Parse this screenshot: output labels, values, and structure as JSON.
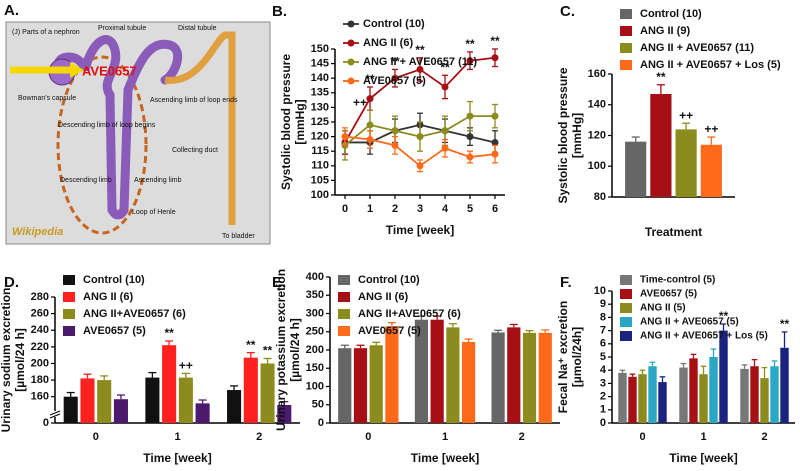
{
  "panel_a": {
    "labels": [
      "A.",
      "(J) Parts of a nephron",
      "Proximal tubule",
      "Distal tubule",
      "AVE0657",
      "Bowman's capsule",
      "Descending limb of loop begins",
      "Ascending limb of loop ends",
      "Collecting duct",
      "Descending limb",
      "Ascending limb",
      "Loop of Henle",
      "To bladder",
      "Wikipedia"
    ]
  },
  "chart_data": [
    {
      "type": "line",
      "panel_label": "B.",
      "xlabel": "Time [week]",
      "ylabel": [
        "Systolic blood pressure",
        "[mmHg]"
      ],
      "x": [
        0,
        1,
        2,
        3,
        4,
        5,
        6
      ],
      "xlim": [
        -0.4,
        6.4
      ],
      "xticks": [
        0,
        1,
        2,
        3,
        4,
        5,
        6
      ],
      "ylim": [
        100,
        150
      ],
      "yticks": [
        100,
        105,
        110,
        115,
        120,
        125,
        130,
        135,
        140,
        145,
        150
      ],
      "legend": "upper left",
      "series": [
        {
          "name": "Control (10)",
          "color": "#333333",
          "values": [
            118,
            118,
            122,
            124,
            122,
            120,
            118
          ],
          "errors": [
            4,
            4,
            4,
            4,
            4,
            3,
            4
          ]
        },
        {
          "name": "ANG II (6)",
          "color": "#a50f15",
          "values": [
            118,
            133,
            140,
            143,
            137,
            146,
            147
          ],
          "errors": [
            4,
            4,
            3,
            4,
            4,
            3,
            3
          ]
        },
        {
          "name": "ANG II + AVE0657 (11)",
          "color": "#8c8c1e",
          "values": [
            117,
            124,
            122,
            120,
            122,
            127,
            127
          ],
          "errors": [
            5,
            5,
            5,
            5,
            5,
            5,
            4
          ]
        },
        {
          "name": "AVE0657 (5)",
          "color": "#ff6a1a",
          "values": [
            120,
            119,
            117,
            110,
            116,
            113,
            114
          ],
          "errors": [
            3,
            3,
            3,
            2,
            3,
            2,
            3
          ]
        }
      ],
      "annotations": [
        {
          "text": "**",
          "series": 1,
          "index": 1
        },
        {
          "text": "**",
          "series": 1,
          "index": 2
        },
        {
          "text": "**",
          "series": 1,
          "index": 3
        },
        {
          "text": "**",
          "series": 1,
          "index": 4
        },
        {
          "text": "**",
          "series": 1,
          "index": 5
        },
        {
          "text": "**",
          "series": 1,
          "index": 6
        },
        {
          "text": "++",
          "series": 2,
          "index": 1
        }
      ]
    },
    {
      "type": "bar",
      "panel_label": "C.",
      "xlabel": "Treatment",
      "ylabel": [
        "Systolic blood pressure",
        "[mmHg]"
      ],
      "categories": [
        null
      ],
      "ylim": [
        80,
        160
      ],
      "yticks": [
        80,
        100,
        120,
        140,
        160
      ],
      "legend": "upper left",
      "series": [
        {
          "name": "Control (10)",
          "color": "#666666",
          "values": [
            116
          ],
          "errors": [
            3
          ]
        },
        {
          "name": "ANG II (9)",
          "color": "#a50f15",
          "values": [
            147
          ],
          "errors": [
            6
          ]
        },
        {
          "name": "ANG II + AVE0657 (11)",
          "color": "#8c8c1e",
          "values": [
            124
          ],
          "errors": [
            4
          ]
        },
        {
          "name": "ANG II + AVE0657 + Los (5)",
          "color": "#ff6a1a",
          "values": [
            114
          ],
          "errors": [
            5
          ]
        }
      ],
      "annotations": [
        {
          "text": "**",
          "series": 1,
          "index": 0
        },
        {
          "text": "++",
          "series": 2,
          "index": 0
        },
        {
          "text": "++",
          "series": 3,
          "index": 0
        }
      ]
    },
    {
      "type": "bar",
      "panel_label": "D.",
      "xlabel": "Time [week]",
      "ylabel": [
        "Urinary sodium excretion",
        "[µmol/24 h]"
      ],
      "categories": [
        "0",
        "1",
        "2"
      ],
      "ylim": [
        0,
        280
      ],
      "ybreak": [
        0,
        150
      ],
      "yticks": [
        0,
        160,
        180,
        200,
        220,
        240,
        260,
        280
      ],
      "legend": "upper left",
      "series": [
        {
          "name": "Control (10)",
          "color": "#111111",
          "values": [
            160,
            183,
            168
          ],
          "errors": [
            5,
            6,
            5
          ]
        },
        {
          "name": "ANG II (6)",
          "color": "#ff2020",
          "values": [
            182,
            222,
            207
          ],
          "errors": [
            5,
            5,
            6
          ]
        },
        {
          "name": "ANG II+AVE0657 (6)",
          "color": "#8c8c1e",
          "values": [
            180,
            183,
            200
          ],
          "errors": [
            5,
            5,
            6
          ]
        },
        {
          "name": "AVE0657 (5)",
          "color": "#4b1a6e",
          "values": [
            157,
            152,
            150
          ],
          "errors": [
            5,
            4,
            4
          ]
        }
      ],
      "annotations": [
        {
          "text": "**",
          "series": 1,
          "index": 1
        },
        {
          "text": "++",
          "series": 2,
          "index": 1
        },
        {
          "text": "**",
          "series": 1,
          "index": 2
        },
        {
          "text": "**",
          "series": 2,
          "index": 2
        }
      ]
    },
    {
      "type": "bar",
      "panel_label": "E.",
      "xlabel": "Time [week]",
      "ylabel": [
        "Urinary potassium excretion",
        "[µmol/24 h]"
      ],
      "categories": [
        "0",
        "1",
        "2"
      ],
      "ylim": [
        0,
        400
      ],
      "yticks": [
        0,
        50,
        100,
        150,
        200,
        250,
        300,
        350,
        400
      ],
      "legend": "upper left",
      "series": [
        {
          "name": "Control (10)",
          "color": "#666666",
          "values": [
            205,
            283,
            248
          ],
          "errors": [
            8,
            10,
            6
          ]
        },
        {
          "name": "ANG II (6)",
          "color": "#a50f15",
          "values": [
            205,
            283,
            262
          ],
          "errors": [
            8,
            10,
            8
          ]
        },
        {
          "name": "ANG II+AVE0657 (6)",
          "color": "#8c8c1e",
          "values": [
            213,
            262,
            247
          ],
          "errors": [
            8,
            10,
            6
          ]
        },
        {
          "name": "AVE0657 (5)",
          "color": "#ff6a1a",
          "values": [
            265,
            222,
            247
          ],
          "errors": [
            10,
            8,
            8
          ]
        }
      ],
      "annotations": []
    },
    {
      "type": "bar",
      "panel_label": "F.",
      "xlabel": "Time [week]",
      "ylabel": [
        "Fecal Na⁺ excretion",
        "[µmol/24h]"
      ],
      "categories": [
        "0",
        "1",
        "2"
      ],
      "ylim": [
        0,
        10
      ],
      "yticks": [
        0,
        1,
        2,
        3,
        4,
        5,
        6,
        7,
        8,
        9,
        10
      ],
      "legend": "upper left",
      "series": [
        {
          "name": "Time-control (5)",
          "color": "#777777",
          "values": [
            3.8,
            4.2,
            4.1
          ],
          "errors": [
            0.2,
            0.3,
            0.3
          ]
        },
        {
          "name": "AVE0657 (5)",
          "color": "#a50f15",
          "values": [
            3.5,
            4.9,
            4.3
          ],
          "errors": [
            0.2,
            0.3,
            0.5
          ]
        },
        {
          "name": "ANG II (5)",
          "color": "#8c8c1e",
          "values": [
            3.7,
            3.7,
            3.4
          ],
          "errors": [
            0.3,
            0.6,
            0.8
          ]
        },
        {
          "name": "ANG II + AVE0657 (5)",
          "color": "#2aa7c4",
          "values": [
            4.3,
            5.0,
            4.3
          ],
          "errors": [
            0.3,
            0.6,
            0.4
          ]
        },
        {
          "name": "ANG II + AVE0657 + Los (5)",
          "color": "#1a237e",
          "values": [
            3.1,
            7.0,
            5.7
          ],
          "errors": [
            0.4,
            0.5,
            1.2
          ]
        }
      ],
      "annotations": [
        {
          "text": "**",
          "series": 4,
          "index": 1
        },
        {
          "text": "**",
          "series": 4,
          "index": 2
        }
      ]
    }
  ]
}
